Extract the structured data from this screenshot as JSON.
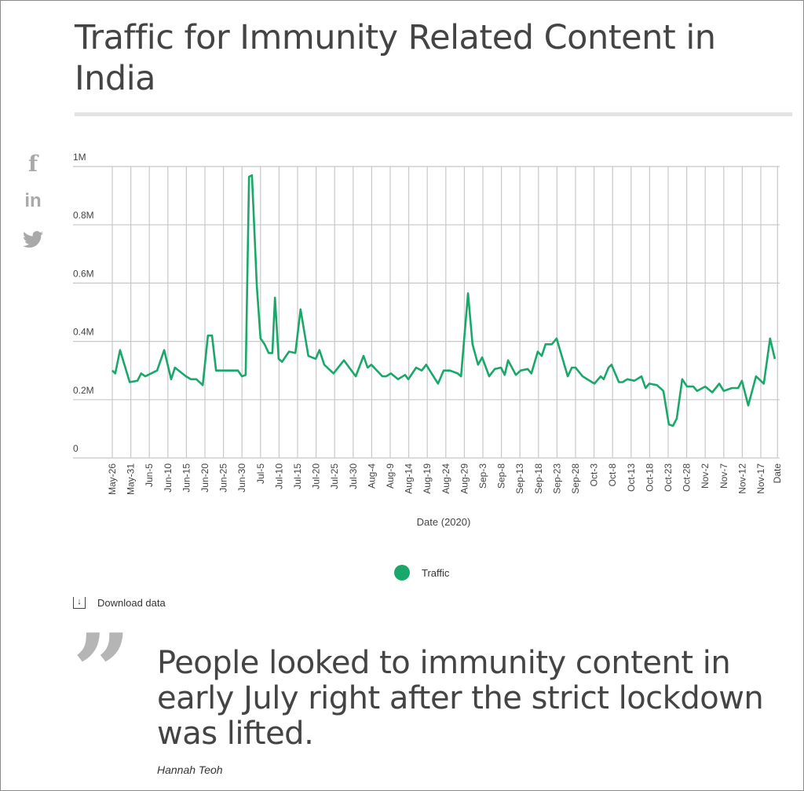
{
  "title": "Traffic for Immunity Related Content in India",
  "social": [
    {
      "icon": "facebook-icon",
      "glyph": "f"
    },
    {
      "icon": "linkedin-icon",
      "glyph": "in"
    },
    {
      "icon": "twitter-icon",
      "glyph": "🐦"
    }
  ],
  "chart_data": {
    "type": "line",
    "title": "Traffic for Immunity Related Content in India",
    "xlabel": "Date (2020)",
    "ylabel": "",
    "x_unit": "days since May-26-2020",
    "ylim": [
      0,
      1000000
    ],
    "yticks": [
      {
        "value": 0,
        "label": "0"
      },
      {
        "value": 200000,
        "label": "0.2M"
      },
      {
        "value": 400000,
        "label": "0.4M"
      },
      {
        "value": 600000,
        "label": "0.6M"
      },
      {
        "value": 800000,
        "label": "0.8M"
      },
      {
        "value": 1000000,
        "label": "1M"
      }
    ],
    "xticks": [
      {
        "day": 0,
        "label": "May-26"
      },
      {
        "day": 5,
        "label": "May-31"
      },
      {
        "day": 10,
        "label": "Jun-5"
      },
      {
        "day": 15,
        "label": "Jun-10"
      },
      {
        "day": 20,
        "label": "Jun-15"
      },
      {
        "day": 25,
        "label": "Jun-20"
      },
      {
        "day": 30,
        "label": "Jun-25"
      },
      {
        "day": 35,
        "label": "Jun-30"
      },
      {
        "day": 40,
        "label": "Jul-5"
      },
      {
        "day": 45,
        "label": "Jul-10"
      },
      {
        "day": 50,
        "label": "Jul-15"
      },
      {
        "day": 55,
        "label": "Jul-20"
      },
      {
        "day": 60,
        "label": "Jul-25"
      },
      {
        "day": 65,
        "label": "Jul-30"
      },
      {
        "day": 70,
        "label": "Aug-4"
      },
      {
        "day": 75,
        "label": "Aug-9"
      },
      {
        "day": 80,
        "label": "Aug-14"
      },
      {
        "day": 85,
        "label": "Aug-19"
      },
      {
        "day": 90,
        "label": "Aug-24"
      },
      {
        "day": 95,
        "label": "Aug-29"
      },
      {
        "day": 100,
        "label": "Sep-3"
      },
      {
        "day": 105,
        "label": "Sep-8"
      },
      {
        "day": 110,
        "label": "Sep-13"
      },
      {
        "day": 115,
        "label": "Sep-18"
      },
      {
        "day": 120,
        "label": "Sep-23"
      },
      {
        "day": 125,
        "label": "Sep-28"
      },
      {
        "day": 130,
        "label": "Oct-3"
      },
      {
        "day": 135,
        "label": "Oct-8"
      },
      {
        "day": 140,
        "label": "Oct-13"
      },
      {
        "day": 145,
        "label": "Oct-18"
      },
      {
        "day": 150,
        "label": "Oct-23"
      },
      {
        "day": 155,
        "label": "Oct-28"
      },
      {
        "day": 160,
        "label": "Nov-2"
      },
      {
        "day": 165,
        "label": "Nov-7"
      },
      {
        "day": 170,
        "label": "Nov-12"
      },
      {
        "day": 175,
        "label": "Nov-17"
      },
      {
        "day": 179.5,
        "label": "Date"
      }
    ],
    "grid": true,
    "legend": "bottom-center",
    "series": [
      {
        "name": "Traffic",
        "color": "#1aa86a",
        "x": [
          0,
          0.8,
          2.1,
          4.7,
          6.8,
          7.8,
          8.9,
          12.1,
          14,
          15.9,
          16.9,
          19.9,
          21.2,
          22.7,
          24.4,
          25.8,
          26.9,
          28,
          29.7,
          31.8,
          33.9,
          35,
          36,
          36.9,
          37.7,
          39,
          40,
          41.1,
          42.2,
          43.2,
          43.9,
          44.9,
          45.8,
          47.7,
          49.4,
          50.8,
          52.9,
          54.9,
          55.9,
          57.2,
          59.7,
          62.5,
          65.7,
          67.8,
          68.9,
          69.9,
          72.9,
          73.9,
          75.2,
          77.1,
          79,
          79.9,
          82,
          83.5,
          84.7,
          87.9,
          89.4,
          91.1,
          93.2,
          94.1,
          96,
          97.2,
          98.7,
          99.8,
          101.7,
          103.2,
          104.9,
          105.9,
          106.8,
          108.9,
          110.2,
          112.1,
          113.1,
          114.8,
          115.9,
          116.9,
          118.6,
          119.9,
          122.9,
          124,
          125,
          126.9,
          130.1,
          131.8,
          132.6,
          133.9,
          134.7,
          136.7,
          137.7,
          139,
          140.9,
          142.8,
          143.9,
          144.9,
          147,
          148.7,
          150.2,
          151.3,
          152.3,
          153.8,
          155.1,
          156.8,
          157.8,
          160,
          161.9,
          163.8,
          165,
          167.2,
          168.9,
          169.9,
          171.6,
          173.7,
          175.8,
          177.5,
          178.8
        ],
        "values": [
          300000,
          290000,
          370000,
          260000,
          265000,
          290000,
          280000,
          300000,
          370000,
          270000,
          310000,
          280000,
          270000,
          270000,
          250000,
          420000,
          420000,
          300000,
          300000,
          300000,
          300000,
          280000,
          285000,
          965000,
          970000,
          590000,
          410000,
          390000,
          360000,
          360000,
          550000,
          340000,
          330000,
          365000,
          360000,
          510000,
          350000,
          340000,
          370000,
          320000,
          290000,
          335000,
          280000,
          350000,
          310000,
          320000,
          280000,
          280000,
          290000,
          270000,
          285000,
          270000,
          310000,
          300000,
          320000,
          255000,
          300000,
          300000,
          290000,
          280000,
          565000,
          390000,
          320000,
          345000,
          280000,
          305000,
          310000,
          285000,
          335000,
          285000,
          300000,
          305000,
          290000,
          365000,
          350000,
          390000,
          390000,
          410000,
          280000,
          310000,
          310000,
          280000,
          255000,
          280000,
          270000,
          310000,
          320000,
          260000,
          260000,
          270000,
          265000,
          280000,
          240000,
          255000,
          250000,
          230000,
          115000,
          110000,
          135000,
          270000,
          245000,
          245000,
          230000,
          245000,
          225000,
          255000,
          230000,
          240000,
          240000,
          265000,
          180000,
          280000,
          255000,
          410000,
          340000
        ]
      }
    ]
  },
  "download_label": "Download data",
  "quote": {
    "text": "People looked to immunity content in early July right after the strict lockdown was lifted.",
    "mark": "”",
    "author": "Hannah Teoh"
  }
}
